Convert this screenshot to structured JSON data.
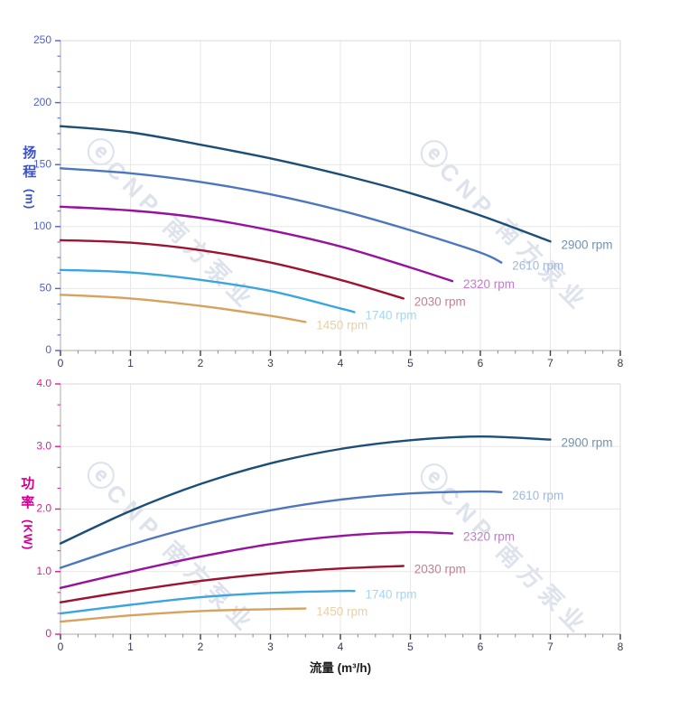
{
  "watermark": {
    "logo": "ⓔ",
    "text": "CNP 南方泵业",
    "color": "#c1cbdd"
  },
  "chart_data": [
    {
      "type": "line",
      "title": "",
      "xlabel": "",
      "ylabel": "扬程 (m)",
      "ylabel_main_chars": [
        "扬",
        "程"
      ],
      "ylabel_unit": "(m)",
      "ylabel_color": "#3c50c8",
      "xlim": [
        0,
        8
      ],
      "ylim": [
        0,
        250
      ],
      "grid": true,
      "x_major_ticks": [
        0,
        1,
        2,
        3,
        4,
        5,
        6,
        7,
        8
      ],
      "x_tick_labels": [
        "0",
        "1",
        "2",
        "3",
        "4",
        "5",
        "6",
        "7",
        "8"
      ],
      "x_minor_step": 0.25,
      "y_major_ticks": [
        0,
        50,
        100,
        150,
        200,
        250
      ],
      "y_tick_labels": [
        "0",
        "50",
        "100",
        "150",
        "200",
        "250"
      ],
      "y_minor_step": 12.5,
      "x_tick_color": "#3a3a55",
      "y_tick_color": "#4c5fd6",
      "legend_position": "end-of-curve",
      "series": [
        {
          "name": "2900 rpm",
          "color": "#1c4e78",
          "label_color": "#7292ae",
          "points": [
            [
              0,
              181
            ],
            [
              1,
              176
            ],
            [
              2,
              166
            ],
            [
              3,
              155
            ],
            [
              4,
              142
            ],
            [
              5,
              127
            ],
            [
              6,
              109
            ],
            [
              7,
              88
            ]
          ]
        },
        {
          "name": "2610 rpm",
          "color": "#4d77bd",
          "label_color": "#a2b7dd",
          "points": [
            [
              0,
              147
            ],
            [
              1,
              143
            ],
            [
              2,
              136
            ],
            [
              3,
              126
            ],
            [
              4,
              113
            ],
            [
              5,
              97
            ],
            [
              6,
              79
            ],
            [
              6.3,
              71
            ]
          ]
        },
        {
          "name": "2320 rpm",
          "color": "#97129d",
          "label_color": "#bd7fc8",
          "points": [
            [
              0,
              116
            ],
            [
              1,
              113
            ],
            [
              2,
              107
            ],
            [
              3,
              97
            ],
            [
              4,
              84
            ],
            [
              5,
              67
            ],
            [
              5.6,
              56
            ]
          ]
        },
        {
          "name": "2030 rpm",
          "color": "#9d1332",
          "label_color": "#c4818f",
          "points": [
            [
              0,
              89
            ],
            [
              1,
              87
            ],
            [
              2,
              81
            ],
            [
              3,
              71
            ],
            [
              4,
              57
            ],
            [
              4.9,
              42
            ]
          ]
        },
        {
          "name": "1740 rpm",
          "color": "#3aa5df",
          "label_color": "#a5d6f2",
          "points": [
            [
              0,
              65
            ],
            [
              1,
              63
            ],
            [
              2,
              57
            ],
            [
              3,
              48
            ],
            [
              4,
              34
            ],
            [
              4.2,
              31
            ]
          ]
        },
        {
          "name": "1450 rpm",
          "color": "#d7a15e",
          "label_color": "#e9d0a5",
          "points": [
            [
              0,
              45
            ],
            [
              1,
              42
            ],
            [
              2,
              36
            ],
            [
              3,
              28
            ],
            [
              3.5,
              23
            ]
          ]
        }
      ]
    },
    {
      "type": "line",
      "title": "",
      "xlabel": "流量 (m³/h)",
      "ylabel": "功率 (KW)",
      "ylabel_main_chars": [
        "功",
        "率"
      ],
      "ylabel_unit": "(KW)",
      "ylabel_color": "#cf0090",
      "xlim": [
        0,
        8
      ],
      "ylim": [
        0,
        4
      ],
      "grid": true,
      "x_major_ticks": [
        0,
        1,
        2,
        3,
        4,
        5,
        6,
        7,
        8
      ],
      "x_tick_labels": [
        "0",
        "1",
        "2",
        "3",
        "4",
        "5",
        "6",
        "7",
        "8"
      ],
      "x_minor_step": 0.25,
      "y_major_ticks": [
        0,
        1,
        2,
        3,
        4
      ],
      "y_tick_labels": [
        "0",
        "1.0",
        "2.0",
        "3.0",
        "4.0"
      ],
      "y_minor_step": 0.3333333,
      "x_tick_color": "#3a3a55",
      "y_tick_color": "#e8189a",
      "legend_position": "end-of-curve",
      "series": [
        {
          "name": "2900 rpm",
          "color": "#1c4e78",
          "label_color": "#7292ae",
          "points": [
            [
              0,
              1.45
            ],
            [
              1,
              1.97
            ],
            [
              2,
              2.4
            ],
            [
              3,
              2.73
            ],
            [
              4,
              2.96
            ],
            [
              5,
              3.1
            ],
            [
              6,
              3.16
            ],
            [
              7,
              3.11
            ]
          ]
        },
        {
          "name": "2610 rpm",
          "color": "#4d77bd",
          "label_color": "#a2b7dd",
          "points": [
            [
              0,
              1.06
            ],
            [
              1,
              1.43
            ],
            [
              2,
              1.74
            ],
            [
              3,
              1.98
            ],
            [
              4,
              2.15
            ],
            [
              5,
              2.25
            ],
            [
              6,
              2.28
            ],
            [
              6.3,
              2.27
            ]
          ]
        },
        {
          "name": "2320 rpm",
          "color": "#97129d",
          "label_color": "#bd7fc8",
          "points": [
            [
              0,
              0.74
            ],
            [
              1,
              1.0
            ],
            [
              2,
              1.24
            ],
            [
              3,
              1.44
            ],
            [
              4,
              1.57
            ],
            [
              5,
              1.63
            ],
            [
              5.6,
              1.61
            ]
          ]
        },
        {
          "name": "2030 rpm",
          "color": "#9d1332",
          "label_color": "#c4818f",
          "points": [
            [
              0,
              0.51
            ],
            [
              1,
              0.69
            ],
            [
              2,
              0.85
            ],
            [
              3,
              0.97
            ],
            [
              4,
              1.05
            ],
            [
              4.9,
              1.09
            ]
          ]
        },
        {
          "name": "1740 rpm",
          "color": "#3aa5df",
          "label_color": "#a5d6f2",
          "points": [
            [
              0,
              0.33
            ],
            [
              1,
              0.47
            ],
            [
              2,
              0.59
            ],
            [
              3,
              0.66
            ],
            [
              4,
              0.69
            ],
            [
              4.2,
              0.69
            ]
          ]
        },
        {
          "name": "1450 rpm",
          "color": "#d7a15e",
          "label_color": "#e9d0a5",
          "points": [
            [
              0,
              0.2
            ],
            [
              1,
              0.3
            ],
            [
              2,
              0.37
            ],
            [
              3,
              0.4
            ],
            [
              3.5,
              0.41
            ]
          ]
        }
      ]
    }
  ]
}
